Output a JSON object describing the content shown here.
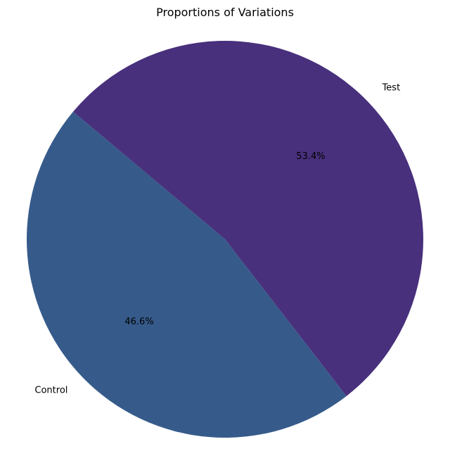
{
  "chart_data": {
    "type": "pie",
    "title": "Proportions of Variations",
    "slices": [
      {
        "label": "Control",
        "value": 46.6,
        "pct_label": "46.6%",
        "color": "#365b8b"
      },
      {
        "label": "Test",
        "value": 53.4,
        "pct_label": "53.4%",
        "color": "#48307c"
      }
    ],
    "start_angle_deg": 140,
    "direction": "counterclockwise"
  }
}
